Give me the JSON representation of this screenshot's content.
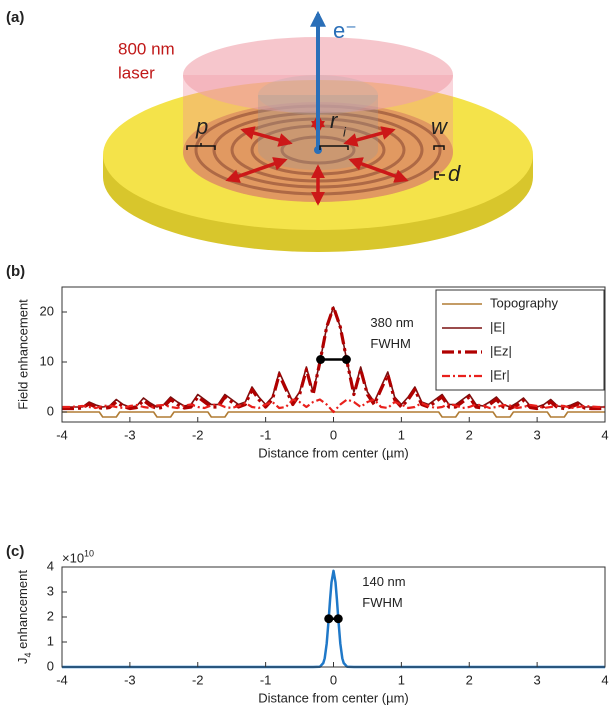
{
  "schematic": {
    "panel_label": "(a)",
    "laser_line1": "800 nm",
    "laser_line2": "laser",
    "electron": "e⁻",
    "p": "p",
    "r": "r",
    "r_sub": "i",
    "w": "w",
    "d": "d"
  },
  "chart_data": [
    {
      "type": "line",
      "panel_label": "(b)",
      "y_label": "Field enhancement",
      "x_label": "Distance from center (µm)",
      "xlim": [
        -4,
        4
      ],
      "xticks": [
        -4,
        -3,
        -2,
        -1,
        0,
        1,
        2,
        3,
        4
      ],
      "ylim": [
        -2,
        25
      ],
      "yticks": [
        0,
        10,
        20
      ],
      "legend": "upper right",
      "x": [
        -4,
        -3.9,
        -3.8,
        -3.7,
        -3.6,
        -3.5,
        -3.4,
        -3.3,
        -3.2,
        -3.1,
        -3,
        -2.9,
        -2.8,
        -2.7,
        -2.6,
        -2.5,
        -2.4,
        -2.3,
        -2.2,
        -2.1,
        -2,
        -1.9,
        -1.8,
        -1.7,
        -1.6,
        -1.5,
        -1.4,
        -1.3,
        -1.2,
        -1.1,
        -1,
        -0.9,
        -0.8,
        -0.7,
        -0.6,
        -0.5,
        -0.4,
        -0.3,
        -0.2,
        -0.1,
        0,
        0.1,
        0.2,
        0.3,
        0.4,
        0.5,
        0.6,
        0.7,
        0.8,
        0.9,
        1,
        1.1,
        1.2,
        1.3,
        1.4,
        1.5,
        1.6,
        1.7,
        1.8,
        1.9,
        2,
        2.1,
        2.2,
        2.3,
        2.4,
        2.5,
        2.6,
        2.7,
        2.8,
        2.9,
        3,
        3.1,
        3.2,
        3.3,
        3.4,
        3.5,
        3.6,
        3.7,
        3.8,
        3.9,
        4
      ],
      "series": [
        {
          "name": "Topography",
          "color": "#b07c34",
          "style": "solid",
          "x": [
            -4,
            -3.45,
            -3.4,
            -3.2,
            -3.15,
            -2.65,
            -2.6,
            -2.4,
            -2.35,
            -1.85,
            -1.8,
            -1.6,
            -1.55,
            1.55,
            1.6,
            1.8,
            1.85,
            2.35,
            2.4,
            2.6,
            2.65,
            3.15,
            3.2,
            3.4,
            3.45,
            4
          ],
          "values": [
            0,
            0,
            -1,
            -1,
            0,
            0,
            -1,
            -1,
            0,
            0,
            -1,
            -1,
            0,
            0,
            -1,
            -1,
            0,
            0,
            -1,
            -1,
            0,
            0,
            -1,
            -1,
            0,
            0
          ]
        },
        {
          "name": "|E|",
          "color": "#7a1010",
          "style": "solid",
          "values": [
            1,
            1,
            1,
            1,
            2,
            1.4,
            1,
            1.2,
            2.5,
            1.5,
            1,
            1.2,
            2.8,
            1.8,
            1,
            1.5,
            3,
            2,
            1.2,
            1.5,
            3.5,
            2.5,
            1.5,
            1.5,
            3.5,
            2.5,
            1.5,
            2,
            5,
            3,
            1.5,
            3,
            8,
            5,
            2,
            4,
            9,
            4,
            10,
            17,
            21,
            17,
            10,
            4,
            9,
            4,
            2,
            5,
            8,
            3,
            1.5,
            3,
            5,
            2,
            1.5,
            2.5,
            3.5,
            1.5,
            1.5,
            2.5,
            3.5,
            1.5,
            1.2,
            2,
            3,
            1.5,
            1,
            1.8,
            2.8,
            1.2,
            1,
            1.5,
            2.5,
            1.2,
            1,
            1.4,
            2,
            1,
            1,
            1,
            1
          ]
        },
        {
          "name": "|Ez|",
          "color": "#b00000",
          "style": "dashdot",
          "values": [
            0.7,
            0.7,
            0.7,
            0.8,
            1.6,
            1,
            0.7,
            0.9,
            2,
            1.1,
            0.7,
            0.9,
            2.3,
            1.3,
            0.7,
            1,
            2.5,
            1.5,
            0.8,
            1,
            3,
            2,
            1,
            1,
            3,
            2,
            1,
            1.5,
            4.5,
            2.5,
            1,
            2.5,
            7.5,
            4.5,
            1.5,
            3.5,
            8.5,
            3.5,
            10,
            17,
            21,
            17,
            10,
            3.5,
            8.5,
            3.5,
            1.5,
            4.5,
            7.5,
            2.5,
            1,
            2.5,
            4.5,
            1.5,
            1,
            2,
            3,
            1,
            1,
            2,
            3,
            1,
            0.8,
            1.5,
            2.5,
            1,
            0.7,
            1.3,
            2.3,
            0.9,
            0.7,
            1.1,
            2,
            0.9,
            0.7,
            1,
            1.6,
            0.8,
            0.7,
            0.7,
            0.7
          ]
        },
        {
          "name": "|Er|",
          "color": "#e8201c",
          "style": "dashdot-thin",
          "values": [
            1,
            1,
            1.1,
            1.2,
            1,
            0.8,
            1.2,
            1.3,
            1,
            0.8,
            1.2,
            1.4,
            1,
            0.8,
            1.3,
            1.4,
            1,
            0.8,
            1.3,
            1.5,
            1,
            0.8,
            1.3,
            1.6,
            1,
            0.8,
            1.2,
            1.8,
            1,
            0.8,
            1.5,
            2,
            0.8,
            1,
            2.5,
            2,
            1,
            2,
            2.5,
            1.5,
            0,
            1.5,
            2.5,
            2,
            1,
            2,
            2.5,
            1,
            0.8,
            2,
            1.5,
            0.8,
            1,
            1.8,
            1.2,
            0.8,
            1,
            1.6,
            1.3,
            0.8,
            1,
            1.5,
            1.3,
            0.8,
            1,
            1.4,
            1.3,
            0.8,
            1,
            1.4,
            1.2,
            0.8,
            1,
            1.3,
            1.2,
            0.8,
            1,
            1.2,
            1.1,
            1,
            1
          ]
        }
      ],
      "annotation": {
        "line1": "380 nm",
        "line2": "FWHM",
        "x": [
          -0.19,
          0.19
        ],
        "y": 10.5
      }
    },
    {
      "type": "line",
      "panel_label": "(c)",
      "y_label_main": "J",
      "y_label_sub": "4",
      "y_label_rest": " enhancement",
      "x_label": "Distance from center (µm)",
      "exponent_base": "×10",
      "exponent_power": "10",
      "xlim": [
        -4,
        4
      ],
      "xticks": [
        -4,
        -3,
        -2,
        -1,
        0,
        1,
        2,
        3,
        4
      ],
      "ylim": [
        0,
        4
      ],
      "yticks": [
        0,
        1,
        2,
        3,
        4
      ],
      "x": [
        -4,
        -0.3,
        -0.2,
        -0.15,
        -0.13,
        -0.1,
        -0.07,
        -0.05,
        -0.03,
        0,
        0.03,
        0.05,
        0.07,
        0.1,
        0.13,
        0.15,
        0.2,
        0.3,
        4
      ],
      "series": [
        {
          "color": "#1f78c8",
          "style": "thick",
          "values": [
            0,
            0,
            0.01,
            0.16,
            0.35,
            0.94,
            1.93,
            2.71,
            3.39,
            3.85,
            3.39,
            2.71,
            1.93,
            0.94,
            0.35,
            0.16,
            0.01,
            0,
            0
          ]
        }
      ],
      "annotation": {
        "line1": "140 nm",
        "line2": "FWHM",
        "x": [
          -0.07,
          0.07
        ],
        "y": 1.93
      }
    }
  ]
}
